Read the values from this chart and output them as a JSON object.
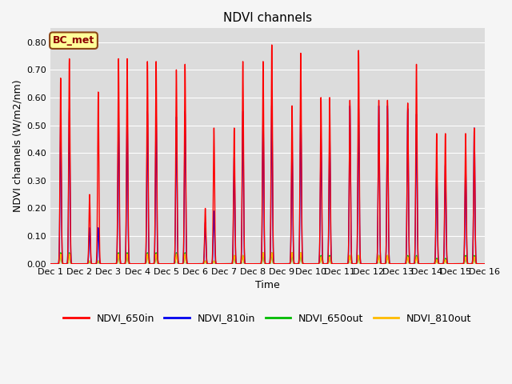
{
  "title": "NDVI channels",
  "xlabel": "Time",
  "ylabel": "NDVI channels (W/m2/nm)",
  "ylim": [
    0.0,
    0.85
  ],
  "xlim": [
    0,
    15
  ],
  "background_color": "#dcdcdc",
  "figure_color": "#f5f5f5",
  "label_text": "BC_met",
  "colors": {
    "NDVI_650in": "#ff0000",
    "NDVI_810in": "#0000ee",
    "NDVI_650out": "#00bb00",
    "NDVI_810out": "#ffbb00"
  },
  "peak_650in_A": [
    0.67,
    0.25,
    0.74,
    0.73,
    0.7,
    0.2,
    0.49,
    0.73,
    0.57,
    0.6,
    0.59,
    0.59,
    0.58,
    0.47,
    0.47
  ],
  "peak_650in_B": [
    0.74,
    0.62,
    0.74,
    0.73,
    0.72,
    0.49,
    0.73,
    0.79,
    0.76,
    0.6,
    0.77,
    0.59,
    0.72,
    0.47,
    0.49
  ],
  "peak_810in_A": [
    0.51,
    0.13,
    0.55,
    0.55,
    0.53,
    0.15,
    0.39,
    0.55,
    0.44,
    0.46,
    0.57,
    0.57,
    0.56,
    0.35,
    0.36
  ],
  "peak_810in_B": [
    0.56,
    0.13,
    0.55,
    0.55,
    0.55,
    0.19,
    0.55,
    0.58,
    0.57,
    0.47,
    0.57,
    0.57,
    0.54,
    0.36,
    0.49
  ],
  "peak_650out_A": [
    0.04,
    0.01,
    0.04,
    0.04,
    0.04,
    0.01,
    0.03,
    0.04,
    0.04,
    0.03,
    0.03,
    0.03,
    0.03,
    0.02,
    0.03
  ],
  "peak_650out_B": [
    0.04,
    0.01,
    0.04,
    0.04,
    0.04,
    0.01,
    0.03,
    0.04,
    0.04,
    0.03,
    0.03,
    0.03,
    0.03,
    0.02,
    0.03
  ],
  "peak_810out_A": [
    0.035,
    0.01,
    0.035,
    0.035,
    0.035,
    0.01,
    0.03,
    0.04,
    0.04,
    0.025,
    0.03,
    0.03,
    0.025,
    0.015,
    0.025
  ],
  "peak_810out_B": [
    0.035,
    0.01,
    0.035,
    0.035,
    0.035,
    0.01,
    0.03,
    0.04,
    0.04,
    0.025,
    0.03,
    0.03,
    0.025,
    0.015,
    0.025
  ],
  "xtick_positions": [
    0,
    1,
    2,
    3,
    4,
    5,
    6,
    7,
    8,
    9,
    10,
    11,
    12,
    13,
    14,
    15
  ],
  "xtick_labels": [
    "Dec 1",
    "Dec 2",
    "Dec 3",
    "Dec 4",
    "Dec 5",
    "Dec 6",
    "Dec 7",
    "Dec 8",
    "Dec 9",
    "Dec 10",
    "Dec 11",
    "Dec 12",
    "Dec 13",
    "Dec 14",
    "Dec 15",
    "Dec 16"
  ],
  "yticks": [
    0.0,
    0.1,
    0.2,
    0.3,
    0.4,
    0.5,
    0.6,
    0.7,
    0.8
  ]
}
